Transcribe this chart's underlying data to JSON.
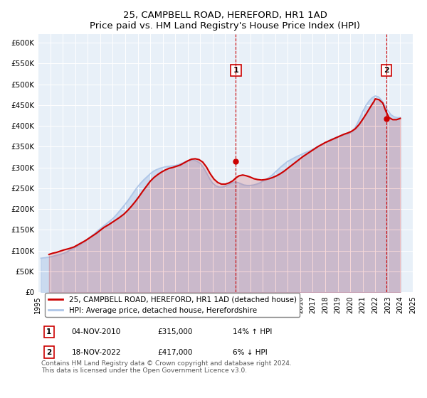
{
  "title": "25, CAMPBELL ROAD, HEREFORD, HR1 1AD",
  "subtitle": "Price paid vs. HM Land Registry's House Price Index (HPI)",
  "legend_line1": "25, CAMPBELL ROAD, HEREFORD, HR1 1AD (detached house)",
  "legend_line2": "HPI: Average price, detached house, Herefordshire",
  "annotation1": {
    "label": "1",
    "date": "04-NOV-2010",
    "price": "£315,000",
    "pct": "14% ↑ HPI"
  },
  "annotation2": {
    "label": "2",
    "date": "18-NOV-2022",
    "price": "£417,000",
    "pct": "6% ↓ HPI"
  },
  "footer": "Contains HM Land Registry data © Crown copyright and database right 2024.\nThis data is licensed under the Open Government Licence v3.0.",
  "hpi_color": "#aec6e8",
  "price_color": "#cc0000",
  "background_color": "#e8f0f8",
  "ylim": [
    0,
    620000
  ],
  "yticks": [
    0,
    50000,
    100000,
    150000,
    200000,
    250000,
    300000,
    350000,
    400000,
    450000,
    500000,
    550000,
    600000
  ],
  "ytick_labels": [
    "£0",
    "£50K",
    "£100K",
    "£150K",
    "£200K",
    "£250K",
    "£300K",
    "£350K",
    "£400K",
    "£450K",
    "£500K",
    "£550K",
    "£600K"
  ],
  "hpi_x": [
    1995.25,
    1995.5,
    1995.75,
    1996.0,
    1996.25,
    1996.5,
    1996.75,
    1997.0,
    1997.25,
    1997.5,
    1997.75,
    1998.0,
    1998.25,
    1998.5,
    1998.75,
    1999.0,
    1999.25,
    1999.5,
    1999.75,
    2000.0,
    2000.25,
    2000.5,
    2000.75,
    2001.0,
    2001.25,
    2001.5,
    2001.75,
    2002.0,
    2002.25,
    2002.5,
    2002.75,
    2003.0,
    2003.25,
    2003.5,
    2003.75,
    2004.0,
    2004.25,
    2004.5,
    2004.75,
    2005.0,
    2005.25,
    2005.5,
    2005.75,
    2006.0,
    2006.25,
    2006.5,
    2006.75,
    2007.0,
    2007.25,
    2007.5,
    2007.75,
    2008.0,
    2008.25,
    2008.5,
    2008.75,
    2009.0,
    2009.25,
    2009.5,
    2009.75,
    2010.0,
    2010.25,
    2010.5,
    2010.75,
    2011.0,
    2011.25,
    2011.5,
    2011.75,
    2012.0,
    2012.25,
    2012.5,
    2012.75,
    2013.0,
    2013.25,
    2013.5,
    2013.75,
    2014.0,
    2014.25,
    2014.5,
    2014.75,
    2015.0,
    2015.25,
    2015.5,
    2015.75,
    2016.0,
    2016.25,
    2016.5,
    2016.75,
    2017.0,
    2017.25,
    2017.5,
    2017.75,
    2018.0,
    2018.25,
    2018.5,
    2018.75,
    2019.0,
    2019.25,
    2019.5,
    2019.75,
    2020.0,
    2020.25,
    2020.5,
    2020.75,
    2021.0,
    2021.25,
    2021.5,
    2021.75,
    2022.0,
    2022.25,
    2022.5,
    2022.75,
    2023.0,
    2023.25,
    2023.5,
    2023.75,
    2024.0
  ],
  "hpi_y": [
    82000,
    83000,
    84000,
    85000,
    87000,
    89000,
    91000,
    93000,
    96000,
    100000,
    104000,
    108000,
    112000,
    117000,
    123000,
    128000,
    134000,
    140000,
    147000,
    153000,
    159000,
    165000,
    171000,
    177000,
    185000,
    194000,
    203000,
    212000,
    222000,
    233000,
    244000,
    254000,
    263000,
    271000,
    278000,
    285000,
    291000,
    295000,
    298000,
    300000,
    302000,
    303000,
    304000,
    305000,
    307000,
    310000,
    313000,
    316000,
    318000,
    318000,
    315000,
    310000,
    300000,
    287000,
    273000,
    262000,
    256000,
    253000,
    253000,
    255000,
    259000,
    263000,
    265000,
    264000,
    261000,
    258000,
    257000,
    257000,
    258000,
    260000,
    263000,
    267000,
    271000,
    276000,
    282000,
    289000,
    296000,
    303000,
    309000,
    315000,
    319000,
    323000,
    327000,
    330000,
    334000,
    337000,
    340000,
    344000,
    348000,
    352000,
    356000,
    360000,
    364000,
    368000,
    371000,
    374000,
    377000,
    379000,
    381000,
    383000,
    390000,
    402000,
    418000,
    435000,
    449000,
    460000,
    468000,
    472000,
    470000,
    462000,
    450000,
    437000,
    427000,
    422000,
    420000,
    420000
  ],
  "price_x": [
    1995.9,
    1996.0,
    1996.1,
    1996.2,
    1996.5,
    1996.8,
    1997.1,
    1997.5,
    1997.9,
    1998.2,
    1998.5,
    1998.8,
    1999.1,
    1999.4,
    1999.7,
    2000.0,
    2000.3,
    2000.7,
    2001.1,
    2001.5,
    2001.9,
    2002.2,
    2002.5,
    2002.8,
    2003.1,
    2003.4,
    2003.7,
    2004.0,
    2004.3,
    2004.6,
    2004.9,
    2005.2,
    2005.5,
    2005.8,
    2006.1,
    2006.4,
    2006.7,
    2007.0,
    2007.3,
    2007.6,
    2007.9,
    2008.2,
    2008.5,
    2008.8,
    2009.1,
    2009.4,
    2009.7,
    2010.0,
    2010.3,
    2010.6,
    2010.85,
    2011.1,
    2011.4,
    2011.7,
    2012.0,
    2012.3,
    2012.6,
    2012.9,
    2013.2,
    2013.5,
    2013.8,
    2014.1,
    2014.4,
    2014.7,
    2015.0,
    2015.3,
    2015.6,
    2015.9,
    2016.2,
    2016.5,
    2016.8,
    2017.1,
    2017.4,
    2017.7,
    2018.0,
    2018.3,
    2018.6,
    2018.9,
    2019.2,
    2019.5,
    2019.8,
    2020.1,
    2020.4,
    2020.7,
    2021.0,
    2021.3,
    2021.6,
    2021.9,
    2022.0,
    2022.3,
    2022.6,
    2022.85,
    2023.1,
    2023.4,
    2023.7,
    2024.0
  ],
  "price_y": [
    91000,
    92000,
    93000,
    94000,
    96000,
    99000,
    102000,
    105000,
    109000,
    114000,
    119000,
    124000,
    130000,
    136000,
    142000,
    149000,
    156000,
    163000,
    171000,
    179000,
    188000,
    197000,
    207000,
    218000,
    230000,
    243000,
    255000,
    267000,
    276000,
    283000,
    289000,
    294000,
    298000,
    300000,
    303000,
    306000,
    311000,
    316000,
    320000,
    321000,
    319000,
    313000,
    301000,
    285000,
    272000,
    264000,
    260000,
    260000,
    263000,
    268000,
    275000,
    280000,
    282000,
    280000,
    277000,
    273000,
    271000,
    270000,
    271000,
    273000,
    276000,
    280000,
    285000,
    291000,
    298000,
    305000,
    312000,
    319000,
    326000,
    332000,
    338000,
    344000,
    350000,
    355000,
    360000,
    364000,
    368000,
    372000,
    376000,
    380000,
    383000,
    387000,
    393000,
    403000,
    416000,
    430000,
    445000,
    459000,
    465000,
    463000,
    455000,
    435000,
    420000,
    415000,
    415000,
    418000
  ],
  "sale1_x": 2010.85,
  "sale1_y": 315000,
  "sale2_x": 2022.9,
  "sale2_y": 417000,
  "xlim": [
    1995,
    2025
  ],
  "xticks": [
    1995,
    1996,
    1997,
    1998,
    1999,
    2000,
    2001,
    2002,
    2003,
    2004,
    2005,
    2006,
    2007,
    2008,
    2009,
    2010,
    2011,
    2012,
    2013,
    2014,
    2015,
    2016,
    2017,
    2018,
    2019,
    2020,
    2021,
    2022,
    2023,
    2024,
    2025
  ]
}
